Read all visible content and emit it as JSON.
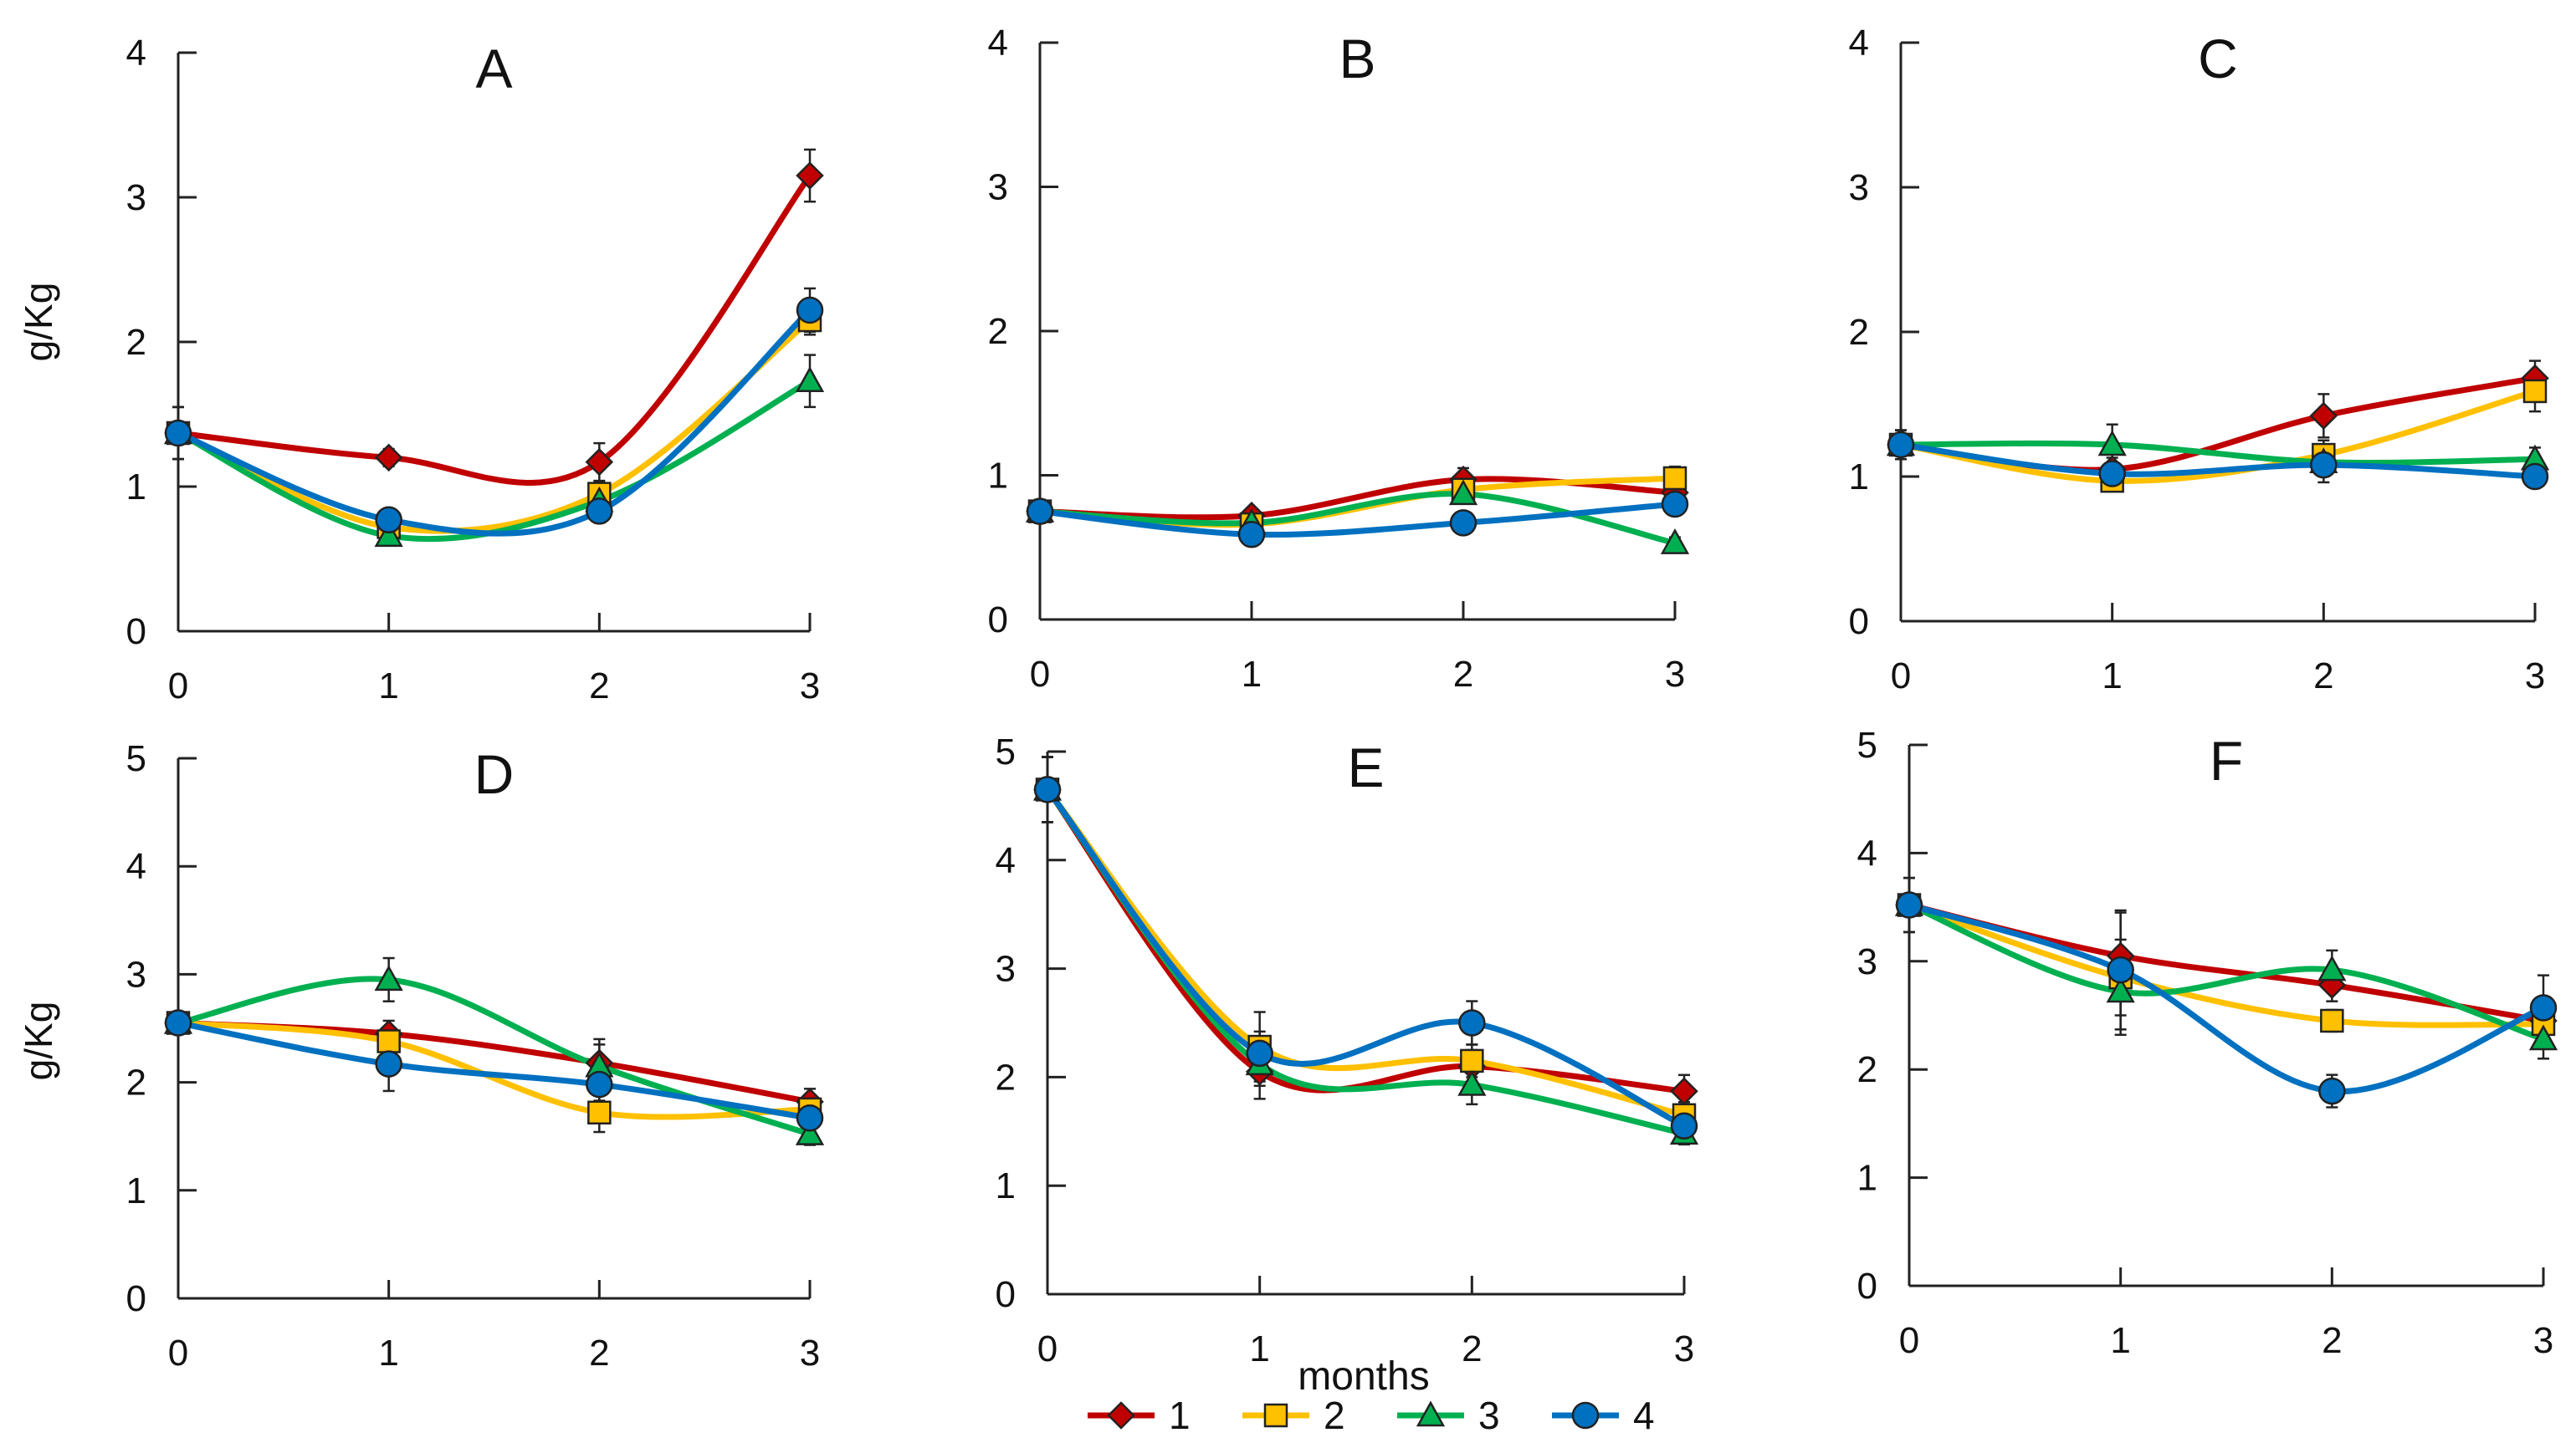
{
  "figure": {
    "ylabel_top": "g/Kg",
    "ylabel_bottom": "g/Kg",
    "xlabel": "months"
  },
  "legend": {
    "entries": [
      {
        "label": "1",
        "color": "#C00000",
        "marker": "diamond"
      },
      {
        "label": "2",
        "color": "#FFC000",
        "marker": "square"
      },
      {
        "label": "3",
        "color": "#00B050",
        "marker": "triangle"
      },
      {
        "label": "4",
        "color": "#0070C0",
        "marker": "circle"
      }
    ]
  },
  "chart_data": [
    {
      "type": "line",
      "title": "A",
      "xlabel": "",
      "ylabel": "g/Kg",
      "x": [
        0,
        1,
        2,
        3
      ],
      "xticks": [
        "0",
        "1",
        "2",
        "3"
      ],
      "ylim": [
        0,
        4
      ],
      "yticks": [
        "0",
        "1",
        "2",
        "3",
        "4"
      ],
      "series": [
        {
          "name": "1",
          "values": [
            1.37,
            1.2,
            1.17,
            3.15
          ],
          "errors": [
            0.18,
            0.06,
            0.13,
            0.18
          ]
        },
        {
          "name": "2",
          "values": [
            1.37,
            0.72,
            0.95,
            2.15
          ],
          "errors": [
            0.18,
            0.05,
            0.08,
            0.1
          ]
        },
        {
          "name": "3",
          "values": [
            1.37,
            0.66,
            0.9,
            1.73
          ],
          "errors": [
            0.18,
            0.05,
            0.08,
            0.18
          ]
        },
        {
          "name": "4",
          "values": [
            1.37,
            0.77,
            0.83,
            2.22
          ],
          "errors": [
            0.18,
            0.05,
            0.08,
            0.15
          ]
        }
      ]
    },
    {
      "type": "line",
      "title": "B",
      "xlabel": "",
      "ylabel": "",
      "x": [
        0,
        1,
        2,
        3
      ],
      "xticks": [
        "0",
        "1",
        "2",
        "3"
      ],
      "ylim": [
        0,
        4
      ],
      "yticks": [
        "0",
        "1",
        "2",
        "3",
        "4"
      ],
      "series": [
        {
          "name": "1",
          "values": [
            0.75,
            0.72,
            0.97,
            0.88
          ],
          "errors": [
            0.08,
            0.05,
            0.08,
            0.06
          ]
        },
        {
          "name": "2",
          "values": [
            0.75,
            0.66,
            0.9,
            0.98
          ],
          "errors": [
            0.08,
            0.05,
            0.08,
            0.08
          ]
        },
        {
          "name": "3",
          "values": [
            0.75,
            0.67,
            0.87,
            0.53
          ],
          "errors": [
            0.08,
            0.05,
            0.06,
            0.04
          ]
        },
        {
          "name": "4",
          "values": [
            0.75,
            0.59,
            0.67,
            0.8
          ],
          "errors": [
            0.08,
            0.05,
            0.05,
            0.06
          ]
        }
      ]
    },
    {
      "type": "line",
      "title": "C",
      "xlabel": "",
      "ylabel": "",
      "x": [
        0,
        1,
        2,
        3
      ],
      "xticks": [
        "0",
        "1",
        "2",
        "3"
      ],
      "ylim": [
        0,
        4
      ],
      "yticks": [
        "0",
        "1",
        "2",
        "3",
        "4"
      ],
      "series": [
        {
          "name": "1",
          "values": [
            1.22,
            1.05,
            1.42,
            1.68
          ],
          "errors": [
            0.1,
            0.08,
            0.15,
            0.12
          ]
        },
        {
          "name": "2",
          "values": [
            1.22,
            0.97,
            1.15,
            1.59
          ],
          "errors": [
            0.1,
            0.06,
            0.1,
            0.14
          ]
        },
        {
          "name": "3",
          "values": [
            1.22,
            1.22,
            1.1,
            1.12
          ],
          "errors": [
            0.1,
            0.14,
            0.1,
            0.08
          ]
        },
        {
          "name": "4",
          "values": [
            1.22,
            1.02,
            1.08,
            1.0
          ],
          "errors": [
            0.1,
            0.06,
            0.12,
            0.05
          ]
        }
      ]
    },
    {
      "type": "line",
      "title": "D",
      "xlabel": "",
      "ylabel": "g/Kg",
      "x": [
        0,
        1,
        2,
        3
      ],
      "xticks": [
        "0",
        "1",
        "2",
        "3"
      ],
      "ylim": [
        0,
        5
      ],
      "yticks": [
        "0",
        "1",
        "2",
        "3",
        "4",
        "5"
      ],
      "series": [
        {
          "name": "1",
          "values": [
            2.55,
            2.45,
            2.18,
            1.82
          ],
          "errors": [
            0.1,
            0.12,
            0.22,
            0.12
          ]
        },
        {
          "name": "2",
          "values": [
            2.55,
            2.38,
            1.72,
            1.75
          ],
          "errors": [
            0.1,
            0.12,
            0.18,
            0.1
          ]
        },
        {
          "name": "3",
          "values": [
            2.55,
            2.95,
            2.15,
            1.52
          ],
          "errors": [
            0.1,
            0.2,
            0.2,
            0.1
          ]
        },
        {
          "name": "4",
          "values": [
            2.55,
            2.17,
            1.98,
            1.67
          ],
          "errors": [
            0.1,
            0.25,
            0.15,
            0.12
          ]
        }
      ]
    },
    {
      "type": "line",
      "title": "E",
      "xlabel": "",
      "ylabel": "",
      "x": [
        0,
        1,
        2,
        3
      ],
      "xticks": [
        "0",
        "1",
        "2",
        "3"
      ],
      "ylim": [
        0,
        5
      ],
      "yticks": [
        "0",
        "1",
        "2",
        "3",
        "4",
        "5"
      ],
      "series": [
        {
          "name": "1",
          "values": [
            4.65,
            2.05,
            2.1,
            1.87
          ],
          "errors": [
            0.3,
            0.25,
            0.15,
            0.15
          ]
        },
        {
          "name": "2",
          "values": [
            4.65,
            2.28,
            2.15,
            1.65
          ],
          "errors": [
            0.3,
            0.32,
            0.15,
            0.12
          ]
        },
        {
          "name": "3",
          "values": [
            4.65,
            2.12,
            1.93,
            1.48
          ],
          "errors": [
            0.3,
            0.2,
            0.18,
            0.1
          ]
        },
        {
          "name": "4",
          "values": [
            4.65,
            2.22,
            2.5,
            1.55
          ],
          "errors": [
            0.3,
            0.2,
            0.2,
            0.12
          ]
        }
      ]
    },
    {
      "type": "line",
      "title": "F",
      "xlabel": "",
      "ylabel": "",
      "x": [
        0,
        1,
        2,
        3
      ],
      "xticks": [
        "0",
        "1",
        "2",
        "3"
      ],
      "ylim": [
        0,
        5
      ],
      "yticks": [
        "0",
        "1",
        "2",
        "3",
        "4",
        "5"
      ],
      "series": [
        {
          "name": "1",
          "values": [
            3.52,
            3.05,
            2.78,
            2.45
          ],
          "errors": [
            0.25,
            0.4,
            0.15,
            0.15
          ]
        },
        {
          "name": "2",
          "values": [
            3.52,
            2.85,
            2.45,
            2.42
          ],
          "errors": [
            0.25,
            0.35,
            0.1,
            0.15
          ]
        },
        {
          "name": "3",
          "values": [
            3.52,
            2.72,
            2.92,
            2.28
          ],
          "errors": [
            0.25,
            0.4,
            0.18,
            0.18
          ]
        },
        {
          "name": "4",
          "values": [
            3.52,
            2.92,
            1.8,
            2.57
          ],
          "errors": [
            0.25,
            0.55,
            0.15,
            0.3
          ]
        }
      ]
    }
  ]
}
